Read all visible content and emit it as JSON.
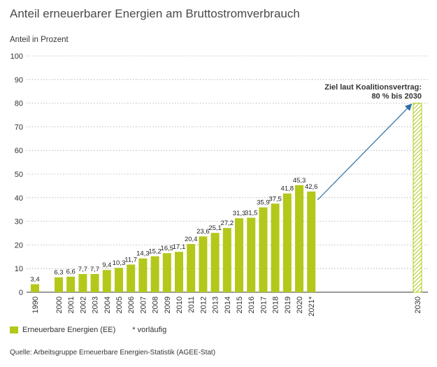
{
  "title": "Anteil erneuerbarer Energien am Bruttostromverbrauch",
  "colors": {
    "bar": "#b3c81a",
    "grid": "#aaaaaa",
    "arrow": "#2c6fa3",
    "hatch": "#b3c81a"
  },
  "legend": {
    "series_label": "Erneuerbare Energien (EE)",
    "note": "* vorläufig"
  },
  "source": "Quelle: Arbeitsgruppe Erneuerbare Energien-Statistik (AGEE-Stat)",
  "chart_data": {
    "type": "bar",
    "ylabel": "Anteil in Prozent",
    "ylim": [
      0,
      100
    ],
    "yticks": [
      "0",
      "10",
      "20",
      "30",
      "40",
      "50",
      "60",
      "70",
      "80",
      "90",
      "100"
    ],
    "grid": true,
    "legend_position": "bottom-left",
    "series": [
      {
        "name": "Erneuerbare Energien (EE)",
        "categories": [
          "1990",
          "2000",
          "2001",
          "2002",
          "2003",
          "2004",
          "2005",
          "2006",
          "2007",
          "2008",
          "2009",
          "2010",
          "2011",
          "2012",
          "2013",
          "2014",
          "2015",
          "2016",
          "2017",
          "2018",
          "2019",
          "2020",
          "2021*"
        ],
        "values": [
          3.4,
          6.3,
          6.6,
          7.7,
          7.7,
          9.4,
          10.3,
          11.7,
          14.3,
          15.2,
          16.5,
          17.1,
          20.4,
          23.6,
          25.1,
          27.2,
          31.3,
          31.5,
          35.9,
          37.5,
          41.8,
          45.3,
          42.6
        ],
        "labels": [
          "3,4",
          "6,3",
          "6,6",
          "7,7",
          "7,7",
          "9,4",
          "10,3",
          "11,7",
          "14,3",
          "15,2",
          "16,5",
          "17,1",
          "20,4",
          "23,6",
          "25,1",
          "27,2",
          "31,3",
          "31,5",
          "35,9",
          "37,5",
          "41,8",
          "45,3",
          "42,6"
        ]
      }
    ],
    "target": {
      "category": "2030",
      "value": 80,
      "annotation_line1": "Ziel laut Koalitionsvertrag:",
      "annotation_line2": "80 % bis 2030"
    }
  }
}
